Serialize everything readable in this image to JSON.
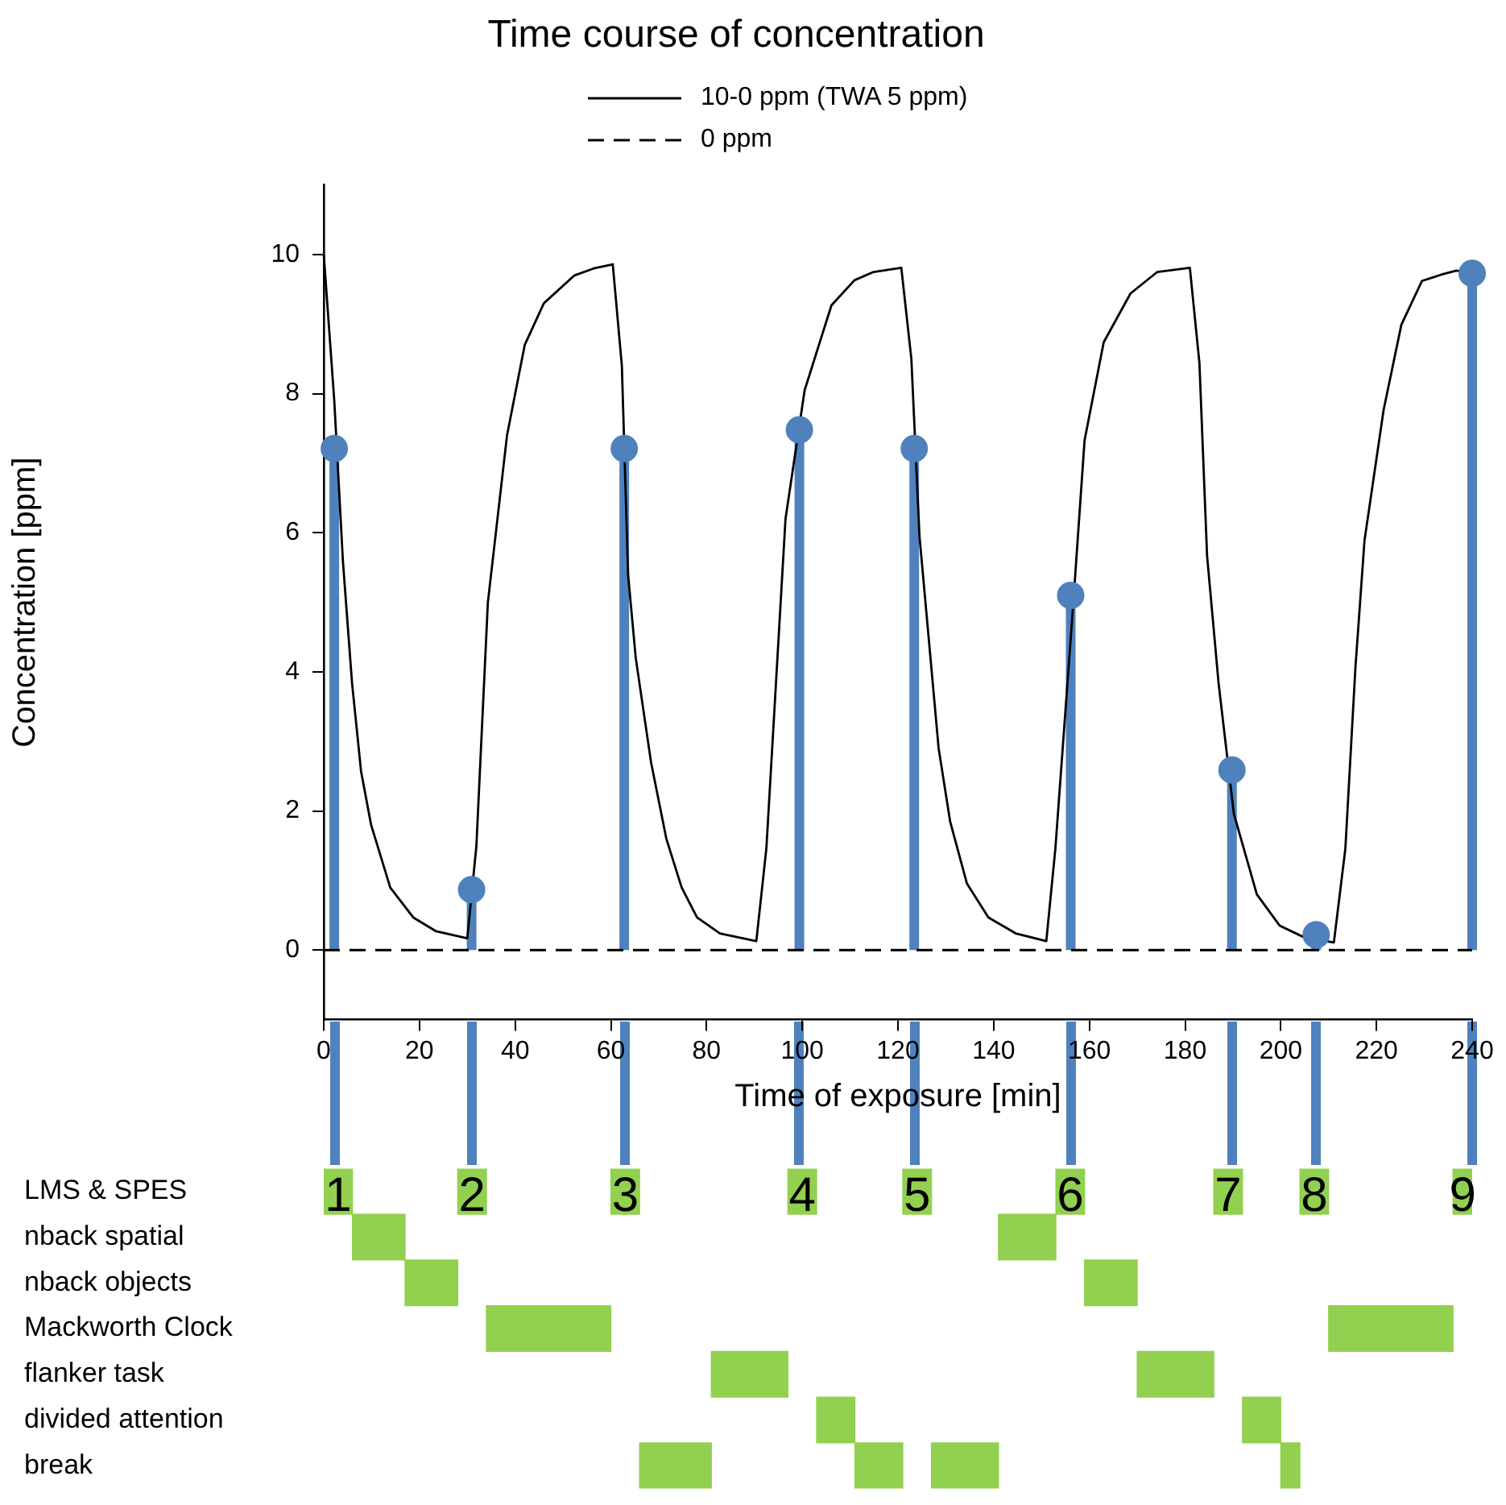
{
  "chart_data": [
    {
      "type": "line",
      "title": "Time course of concentration",
      "xlabel": "Time of exposure [min]",
      "ylabel": "Concentration [ppm]",
      "xlim": [
        0,
        240
      ],
      "xticks": [
        0,
        20,
        40,
        60,
        80,
        100,
        120,
        140,
        160,
        180,
        200,
        220,
        240
      ],
      "ylim": [
        -1,
        11
      ],
      "yticks": [
        0,
        2,
        4,
        6,
        8,
        10
      ],
      "grid": false,
      "legend": "top",
      "series": [
        {
          "name": "10-0 ppm (TWA 5 ppm)",
          "type": "line",
          "color": "#000000",
          "line_style": "solid",
          "marker": "none",
          "x": [
            0,
            2.2,
            4,
            5.9,
            7.8,
            9.9,
            13.9,
            18.7,
            23.5,
            30,
            31.9,
            34.3,
            38.3,
            42,
            46,
            52.4,
            56.4,
            60.4,
            62.3,
            63.6,
            65.2,
            68.4,
            71.6,
            74.8,
            78,
            82.8,
            90.4,
            92.5,
            96.5,
            100.5,
            106.1,
            110.9,
            114.9,
            120.7,
            122.8,
            124.5,
            128.5,
            130.9,
            134.4,
            138.9,
            144.6,
            151,
            152.9,
            156.6,
            159,
            163,
            168.6,
            174.2,
            181,
            183,
            184.6,
            187,
            190.2,
            195,
            199.8,
            204.7,
            211.1,
            213.5,
            215.6,
            217.5,
            221.5,
            225.2,
            229.5,
            233.5,
            236.7,
            240
          ],
          "values": [
            10,
            7.9,
            5.6,
            3.85,
            2.57,
            1.8,
            0.9,
            0.47,
            0.27,
            0.17,
            1.5,
            5,
            7.4,
            8.7,
            9.3,
            9.7,
            9.8,
            9.86,
            8.4,
            5.4,
            4.2,
            2.7,
            1.6,
            0.9,
            0.47,
            0.24,
            0.13,
            1.46,
            6.2,
            8.05,
            9.27,
            9.63,
            9.75,
            9.81,
            8.5,
            5.95,
            2.9,
            1.85,
            0.96,
            0.47,
            0.24,
            0.13,
            1.46,
            4.95,
            7.33,
            8.74,
            9.44,
            9.75,
            9.81,
            8.44,
            5.67,
            3.84,
            1.96,
            0.8,
            0.35,
            0.19,
            0.11,
            1.46,
            4.06,
            5.89,
            7.77,
            8.99,
            9.62,
            9.71,
            9.77,
            9.73
          ]
        },
        {
          "name": "0 ppm",
          "type": "line",
          "color": "#000000",
          "line_style": "dashed",
          "marker": "none",
          "x": [
            0,
            240
          ],
          "values": [
            0,
            0
          ]
        },
        {
          "type": "lollipop",
          "color": "#4f81bd",
          "marker": "circle",
          "x": [
            2.2,
            30.9,
            62.8,
            99.4,
            123.4,
            156.1,
            189.8,
            207.4,
            240
          ],
          "values": [
            7.21,
            0.87,
            7.21,
            7.48,
            7.21,
            5.1,
            2.59,
            0.22,
            9.73
          ]
        }
      ]
    },
    {
      "type": "bar",
      "orientation": "horizontal",
      "tick_labels": "y",
      "grid": false,
      "xlim": [
        0,
        240
      ],
      "categories": [
        "LMS & SPES",
        "nback spatial",
        "nback objects",
        "Mackworth Clock",
        "flanker task",
        "divided attention",
        "break"
      ],
      "series": [
        {
          "color": "#92d050",
          "base": [
            0,
            6,
            17,
            34,
            81,
            103,
            66
          ],
          "values": [
            6,
            11,
            11,
            26,
            16,
            8,
            15
          ]
        },
        {
          "color": "#92d050",
          "base": [
            28,
            141,
            159,
            210,
            170,
            192,
            111
          ],
          "values": [
            6,
            12,
            11,
            26,
            16,
            8,
            10
          ]
        },
        {
          "color": "#92d050",
          "base": [
            60,
            null,
            null,
            null,
            null,
            null,
            127
          ],
          "values": [
            6,
            null,
            null,
            null,
            null,
            null,
            14
          ]
        },
        {
          "color": "#92d050",
          "base": [
            97,
            null,
            null,
            null,
            null,
            null,
            200
          ],
          "values": [
            6,
            null,
            null,
            null,
            null,
            null,
            4
          ]
        },
        {
          "color": "#92d050",
          "base": [
            121,
            null,
            null,
            null,
            null,
            null,
            null
          ],
          "values": [
            6,
            null,
            null,
            null,
            null,
            null,
            null
          ]
        },
        {
          "color": "#92d050",
          "base": [
            153,
            null,
            null,
            null,
            null,
            null,
            null
          ],
          "values": [
            6,
            null,
            null,
            null,
            null,
            null,
            null
          ]
        },
        {
          "color": "#92d050",
          "base": [
            186,
            null,
            null,
            null,
            null,
            null,
            null
          ],
          "values": [
            6,
            null,
            null,
            null,
            null,
            null,
            null
          ]
        },
        {
          "color": "#92d050",
          "base": [
            204,
            null,
            null,
            null,
            null,
            null,
            null
          ],
          "values": [
            6,
            null,
            null,
            null,
            null,
            null,
            null
          ]
        },
        {
          "color": "#92d050",
          "base": [
            236,
            null,
            null,
            null,
            null,
            null,
            null
          ],
          "values": [
            4,
            null,
            null,
            null,
            null,
            null,
            null
          ]
        }
      ],
      "annotations": [
        "1",
        "2",
        "3",
        "4",
        "5",
        "6",
        "7",
        "8",
        "9"
      ]
    }
  ]
}
